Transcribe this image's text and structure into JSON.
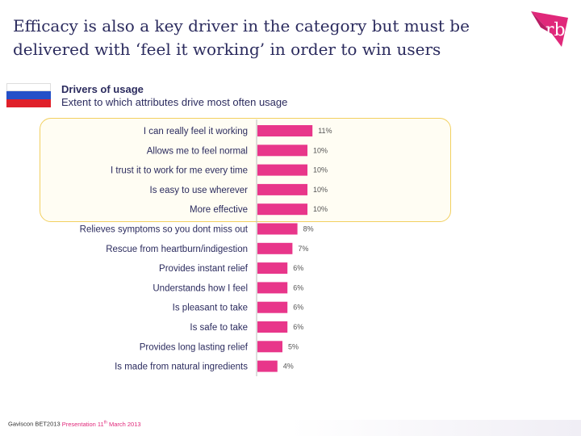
{
  "title": "Efficacy is also a key driver in the category but must be delivered with ‘feel it working’ in order to win users",
  "logo_text": "rb",
  "subtitle": "Drivers of usage",
  "subtitle2": "Extent to which attributes drive most often usage",
  "footer": {
    "brand": "Gaviscon BET2013",
    "presentation": "Presentation 11",
    "sup": "th",
    "date": " March 2013"
  },
  "colors": {
    "bar": "#e8368a",
    "highlight_border": "#f2d060",
    "title": "#2b2b5e"
  },
  "chart_data": {
    "type": "bar",
    "orientation": "horizontal",
    "categories": [
      "I can really feel it working",
      "Allows me to feel normal",
      "I trust it to work for me every time",
      "Is easy to use wherever",
      "More effective",
      "Relieves symptoms so you dont miss out",
      "Rescue from heartburn/indigestion",
      "Provides instant relief",
      "Understands how I feel",
      "Is pleasant to take",
      "Is safe to take",
      "Provides long lasting relief",
      "Is made from natural ingredients"
    ],
    "values": [
      11,
      10,
      10,
      10,
      10,
      8,
      7,
      6,
      6,
      6,
      6,
      5,
      4
    ],
    "labels": [
      "11%",
      "10%",
      "10%",
      "10%",
      "10%",
      "8%",
      "7%",
      "6%",
      "6%",
      "6%",
      "6%",
      "5%",
      "4%"
    ],
    "unit": "%",
    "highlighted_rows": 5
  }
}
